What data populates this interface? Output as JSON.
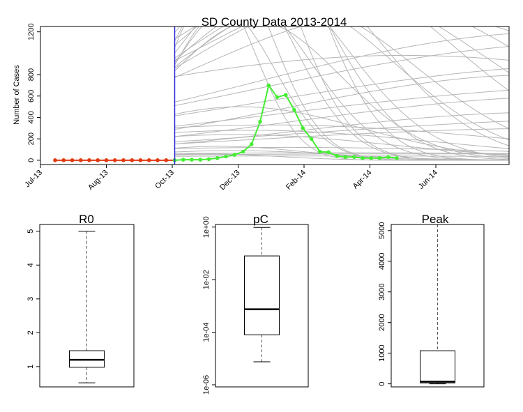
{
  "colors": {
    "observed_before": "#e03a10",
    "observed_after": "#44ee33",
    "simulations": "#b5b5b5",
    "cutoff_line": "#2a2adc",
    "axis": "#000000"
  },
  "chart_data": [
    {
      "type": "line",
      "title": "SD County Data 2013-2014",
      "xlabel": "",
      "ylabel": "Number of Cases",
      "x_axis": "date",
      "xlim": [
        "2013-07-01",
        "2014-07-20"
      ],
      "ylim": [
        0,
        1200
      ],
      "grid": false,
      "x_tick_labels": [
        "Jul-13",
        "Aug-13",
        "Oct-13",
        "Dec-13",
        "Feb-14",
        "Apr-14",
        "Jun-14"
      ],
      "x_ticks": [
        "2013-07-01",
        "2013-08-24",
        "2013-10-17",
        "2013-12-10",
        "2014-02-02",
        "2014-03-28",
        "2014-05-21"
      ],
      "y_ticks": [
        0,
        200,
        400,
        600,
        800,
        1200
      ],
      "cutoff_date": "2013-10-19",
      "series": [
        {
          "role": "observed-before-cutoff",
          "color": "#e03a10",
          "dates": [
            "2013-07-13",
            "2013-07-20",
            "2013-07-27",
            "2013-08-03",
            "2013-08-10",
            "2013-08-17",
            "2013-08-24",
            "2013-08-31",
            "2013-09-07",
            "2013-09-14",
            "2013-09-21",
            "2013-09-28",
            "2013-10-05",
            "2013-10-12",
            "2013-10-19"
          ],
          "values": [
            0,
            0,
            0,
            0,
            0,
            0,
            0,
            0,
            0,
            0,
            0,
            0,
            0,
            0,
            0
          ]
        },
        {
          "role": "observed-after-cutoff",
          "color": "#44ee33",
          "dates": [
            "2013-10-19",
            "2013-10-26",
            "2013-11-02",
            "2013-11-09",
            "2013-11-16",
            "2013-11-23",
            "2013-11-30",
            "2013-12-07",
            "2013-12-14",
            "2013-12-21",
            "2013-12-28",
            "2014-01-04",
            "2014-01-11",
            "2014-01-18",
            "2014-01-25",
            "2014-02-01",
            "2014-02-08",
            "2014-02-15",
            "2014-02-22",
            "2014-03-01",
            "2014-03-08",
            "2014-03-15",
            "2014-03-22",
            "2014-03-29",
            "2014-04-05",
            "2014-04-12",
            "2014-04-19"
          ],
          "values": [
            0,
            5,
            5,
            5,
            10,
            20,
            35,
            50,
            80,
            150,
            360,
            700,
            590,
            610,
            470,
            300,
            200,
            80,
            75,
            40,
            30,
            30,
            20,
            20,
            20,
            30,
            20
          ]
        }
      ],
      "simulated_curves": [
        {
          "peak_date": "2013-11-20",
          "peak": 1600,
          "width": 5
        },
        {
          "peak_date": "2013-11-24",
          "peak": 2000,
          "width": 6
        },
        {
          "peak_date": "2013-11-28",
          "peak": 1400,
          "width": 6
        },
        {
          "peak_date": "2013-12-02",
          "peak": 2600,
          "width": 7
        },
        {
          "peak_date": "2013-12-06",
          "peak": 1800,
          "width": 7
        },
        {
          "peak_date": "2013-12-10",
          "peak": 3000,
          "width": 8
        },
        {
          "peak_date": "2013-12-14",
          "peak": 1500,
          "width": 8
        },
        {
          "peak_date": "2013-12-18",
          "peak": 2200,
          "width": 9
        },
        {
          "peak_date": "2013-12-24",
          "peak": 1300,
          "width": 10
        },
        {
          "peak_date": "2013-12-30",
          "peak": 1700,
          "width": 10
        },
        {
          "peak_date": "2014-01-08",
          "peak": 1900,
          "width": 12
        },
        {
          "peak_date": "2014-01-16",
          "peak": 1500,
          "width": 13
        },
        {
          "peak_date": "2014-01-26",
          "peak": 1450,
          "width": 14
        },
        {
          "peak_date": "2014-02-10",
          "peak": 1800,
          "width": 16
        },
        {
          "peak_date": "2014-02-24",
          "peak": 1600,
          "width": 18
        },
        {
          "peak_date": "2014-03-20",
          "peak": 1550,
          "width": 20
        },
        {
          "peak_date": "2014-04-20",
          "peak": 1400,
          "width": 24
        },
        {
          "peak_date": "2014-06-10",
          "peak": 1900,
          "width": 28
        },
        {
          "peak_date": "2014-07-10",
          "peak": 2500,
          "width": 30
        },
        {
          "peak_date": "2014-04-25",
          "peak": 980,
          "width": 40
        },
        {
          "peak_date": "2013-12-20",
          "peak": 280,
          "width": 22
        },
        {
          "peak_date": "2013-12-08",
          "peak": 240,
          "width": 18
        },
        {
          "peak_date": "2014-01-05",
          "peak": 330,
          "width": 28
        },
        {
          "peak_date": "2013-12-12",
          "peak": 500,
          "width": 14
        },
        {
          "peak_date": "2014-09-01",
          "peak": 1200,
          "width": 36
        },
        {
          "peak_date": "2014-08-15",
          "peak": 800,
          "width": 30
        },
        {
          "peak_date": "2014-10-01",
          "peak": 1100,
          "width": 40
        },
        {
          "peak_date": "2014-09-20",
          "peak": 600,
          "width": 34
        },
        {
          "peak_date": "2014-08-25",
          "peak": 450,
          "width": 30
        },
        {
          "peak_date": "2014-10-20",
          "peak": 900,
          "width": 42
        },
        {
          "peak_date": "2014-11-10",
          "peak": 700,
          "width": 44
        },
        {
          "peak_date": "2013-11-25",
          "peak": 130,
          "width": 10
        },
        {
          "peak_date": "2013-12-05",
          "peak": 90,
          "width": 12
        },
        {
          "peak_date": "2014-01-20",
          "peak": 120,
          "width": 30
        },
        {
          "peak_date": "2014-03-01",
          "peak": 70,
          "width": 40
        },
        {
          "peak_date": "2014-05-15",
          "peak": 60,
          "width": 50
        },
        {
          "peak_date": "2014-09-10",
          "peak": 300,
          "width": 40
        },
        {
          "peak_date": "2014-12-01",
          "peak": 400,
          "width": 45
        },
        {
          "peak_date": "2013-11-15",
          "peak": 60,
          "width": 8
        },
        {
          "peak_date": "2014-02-15",
          "peak": 40,
          "width": 45
        }
      ]
    },
    {
      "type": "box",
      "title": "R0",
      "scale": "linear",
      "ylim": [
        0.4,
        5.2
      ],
      "y_ticks": [
        1,
        2,
        3,
        4,
        5
      ],
      "y_tick_labels": [
        "1",
        "2",
        "3",
        "4",
        "5"
      ],
      "whisker_low": 0.52,
      "q1": 0.98,
      "median": 1.2,
      "q3": 1.47,
      "whisker_high": 5.0
    },
    {
      "type": "box",
      "title": "pC",
      "scale": "log10",
      "ylim": [
        1e-06,
        1.2
      ],
      "y_ticks": [
        1e-06,
        0.0001,
        0.01,
        1
      ],
      "y_tick_labels": [
        "1e-06",
        "1e-04",
        "1e-02",
        "1e+00"
      ],
      "whisker_low": 7.5e-06,
      "q1": 8e-05,
      "median": 0.00075,
      "q3": 0.08,
      "whisker_high": 0.97
    },
    {
      "type": "box",
      "title": "Peak",
      "scale": "linear",
      "ylim": [
        -100,
        5200
      ],
      "y_ticks": [
        0,
        1000,
        2000,
        3000,
        4000,
        5000
      ],
      "y_tick_labels": [
        "0",
        "1000",
        "2000",
        "3000",
        "4000",
        "5000"
      ],
      "whisker_low": 0,
      "q1": 30,
      "median": 70,
      "q3": 1080,
      "whisker_high": 5200
    }
  ]
}
